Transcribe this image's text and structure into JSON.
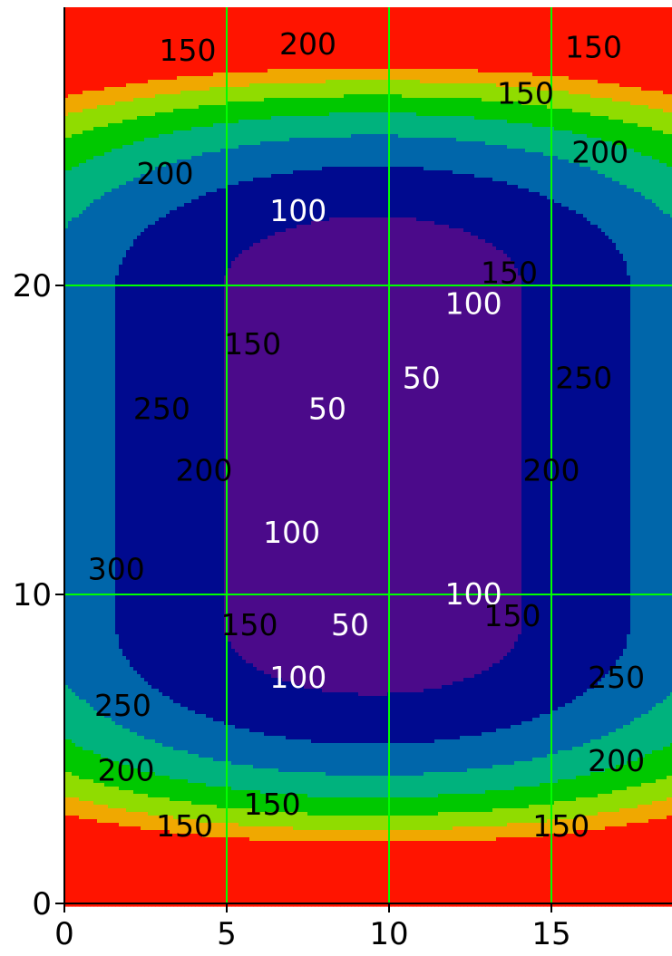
{
  "chart_data": {
    "type": "heatmap",
    "subtype": "filled-contour",
    "title": "",
    "xlabel": "",
    "ylabel": "",
    "xlim": [
      0,
      18.5
    ],
    "ylim": [
      0,
      29
    ],
    "x_ticks": [
      "0",
      "5",
      "10",
      "15"
    ],
    "y_ticks": [
      "0",
      "10",
      "20"
    ],
    "grid": true,
    "legend": "none",
    "levels": [
      0,
      50,
      100,
      150,
      200,
      250,
      300,
      350
    ],
    "level_colors": [
      "#4b0a8a",
      "#000a8f",
      "#0066aa",
      "#00b27d",
      "#00c800",
      "#90dc00",
      "#f0a800",
      "#ff1400"
    ],
    "grid_color": "#00ff00",
    "contour_labels": [
      {
        "text": "150",
        "x": 3.8,
        "y": 27.6
      },
      {
        "text": "200",
        "x": 7.5,
        "y": 27.8
      },
      {
        "text": "150",
        "x": 16.3,
        "y": 27.7
      },
      {
        "text": "150",
        "x": 14.2,
        "y": 26.2
      },
      {
        "text": "200",
        "x": 3.1,
        "y": 23.6
      },
      {
        "text": "200",
        "x": 16.5,
        "y": 24.3
      },
      {
        "text": "100",
        "x": 7.2,
        "y": 22.4
      },
      {
        "text": "150",
        "x": 13.7,
        "y": 20.4
      },
      {
        "text": "100",
        "x": 12.6,
        "y": 19.4
      },
      {
        "text": "150",
        "x": 5.8,
        "y": 18.1
      },
      {
        "text": "50",
        "x": 11.0,
        "y": 17.0
      },
      {
        "text": "250",
        "x": 3.0,
        "y": 16.0
      },
      {
        "text": "50",
        "x": 8.1,
        "y": 16.0
      },
      {
        "text": "250",
        "x": 16.0,
        "y": 17.0
      },
      {
        "text": "200",
        "x": 4.3,
        "y": 14.0
      },
      {
        "text": "200",
        "x": 15.0,
        "y": 14.0
      },
      {
        "text": "100",
        "x": 7.0,
        "y": 12.0
      },
      {
        "text": "300",
        "x": 1.6,
        "y": 10.8
      },
      {
        "text": "100",
        "x": 12.6,
        "y": 10.0
      },
      {
        "text": "150",
        "x": 5.7,
        "y": 9.0
      },
      {
        "text": "50",
        "x": 8.8,
        "y": 9.0
      },
      {
        "text": "150",
        "x": 13.8,
        "y": 9.3
      },
      {
        "text": "100",
        "x": 7.2,
        "y": 7.3
      },
      {
        "text": "250",
        "x": 17.0,
        "y": 7.3
      },
      {
        "text": "250",
        "x": 1.8,
        "y": 6.4
      },
      {
        "text": "200",
        "x": 1.9,
        "y": 4.3
      },
      {
        "text": "200",
        "x": 17.0,
        "y": 4.6
      },
      {
        "text": "150",
        "x": 6.4,
        "y": 3.2
      },
      {
        "text": "150",
        "x": 3.7,
        "y": 2.5
      },
      {
        "text": "150",
        "x": 15.3,
        "y": 2.5
      }
    ]
  }
}
